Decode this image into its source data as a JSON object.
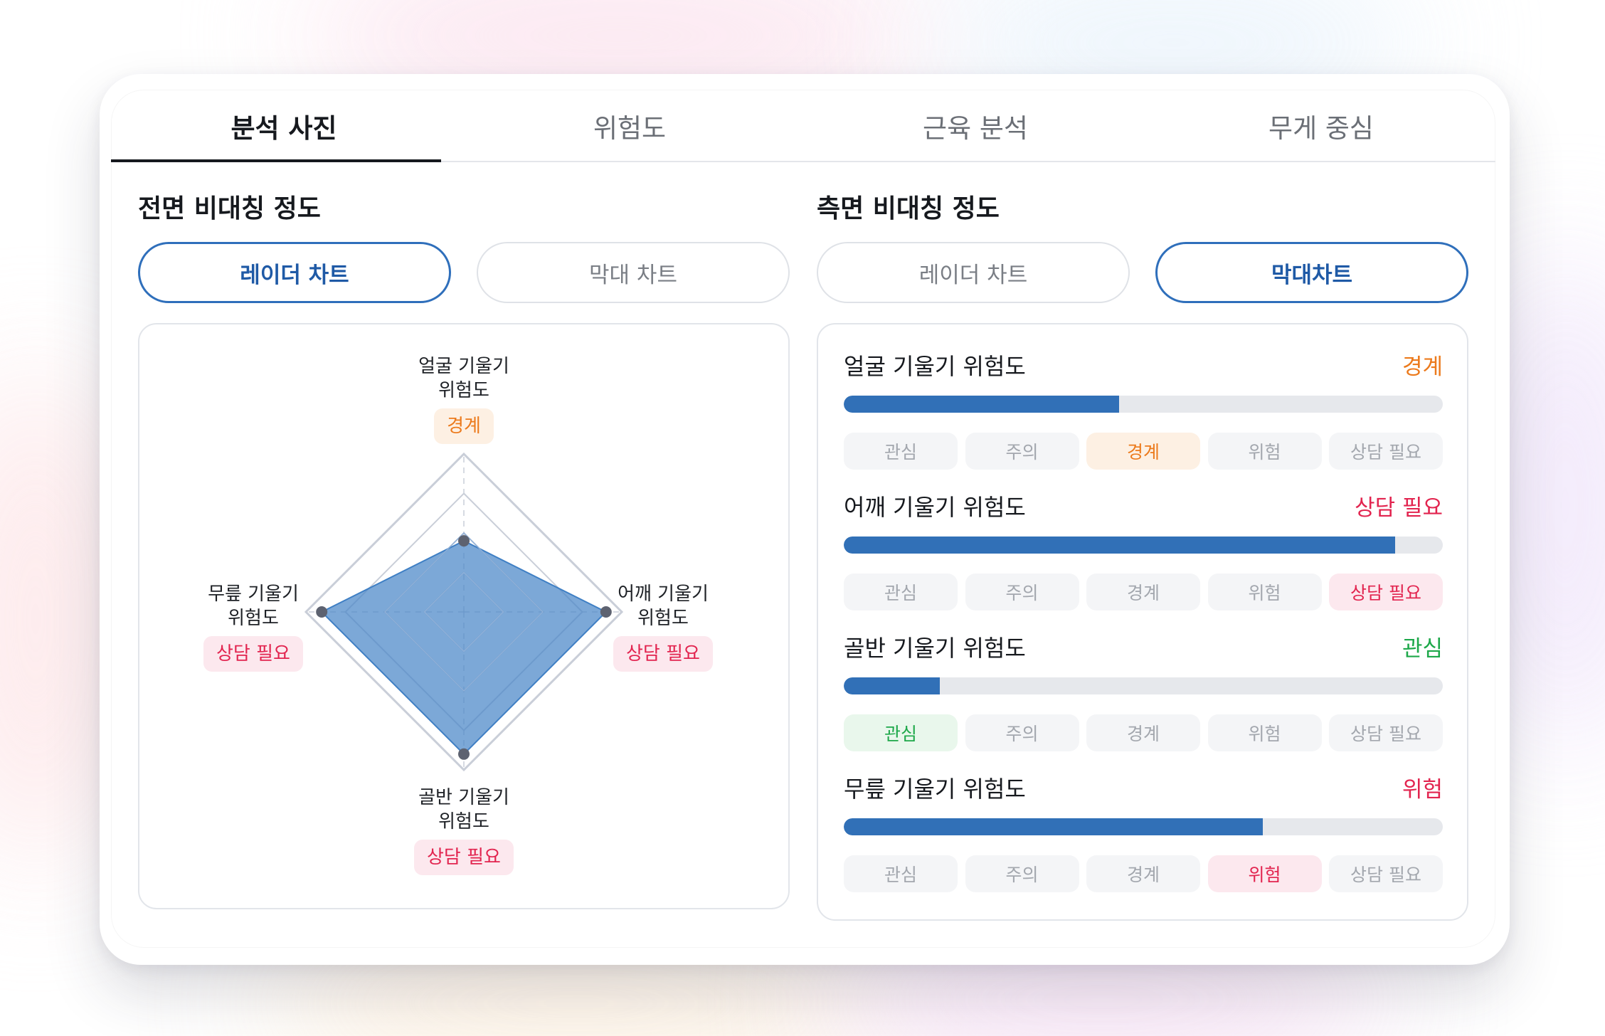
{
  "tabs": [
    "분석 사진",
    "위험도",
    "근육 분석",
    "무게 중심"
  ],
  "active_tab_index": 0,
  "front": {
    "title": "전면 비대칭 정도",
    "buttons": [
      {
        "label": "레이더 차트",
        "active": true
      },
      {
        "label": "막대 차트",
        "active": false
      }
    ],
    "radar": {
      "axes": [
        {
          "label_line1": "얼굴 기울기",
          "label_line2": "위험도",
          "status": "경계",
          "value": 0.45
        },
        {
          "label_line1": "어깨 기울기",
          "label_line2": "위험도",
          "status": "상담 필요",
          "value": 0.9
        },
        {
          "label_line1": "골반 기울기",
          "label_line2": "위험도",
          "status": "상담 필요",
          "value": 0.9
        },
        {
          "label_line1": "무릎 기울기",
          "label_line2": "위험도",
          "status": "상담 필요",
          "value": 0.9
        }
      ]
    }
  },
  "side": {
    "title": "측면 비대칭 정도",
    "buttons": [
      {
        "label": "레이더 차트",
        "active": false
      },
      {
        "label": "막대차트",
        "active": true
      }
    ],
    "levels": [
      "관심",
      "주의",
      "경계",
      "위험",
      "상담 필요"
    ],
    "rows": [
      {
        "title": "얼굴 기울기 위험도",
        "status": "경계",
        "level_index": 2,
        "progress": 0.46
      },
      {
        "title": "어깨 기울기 위험도",
        "status": "상담 필요",
        "level_index": 4,
        "progress": 0.92
      },
      {
        "title": "골반 기울기 위험도",
        "status": "관심",
        "level_index": 0,
        "progress": 0.16
      },
      {
        "title": "무릎 기울기 위험도",
        "status": "위험",
        "level_index": 3,
        "progress": 0.7
      }
    ]
  },
  "colors": {
    "accent": "#2f6fbb",
    "bar_fill": "#3170b7",
    "radar_fill": "#4a86c8",
    "관심": "#1ea84a",
    "경계": "#ec7a1c",
    "위험": "#e2244f",
    "상담 필요": "#e2244f"
  }
}
